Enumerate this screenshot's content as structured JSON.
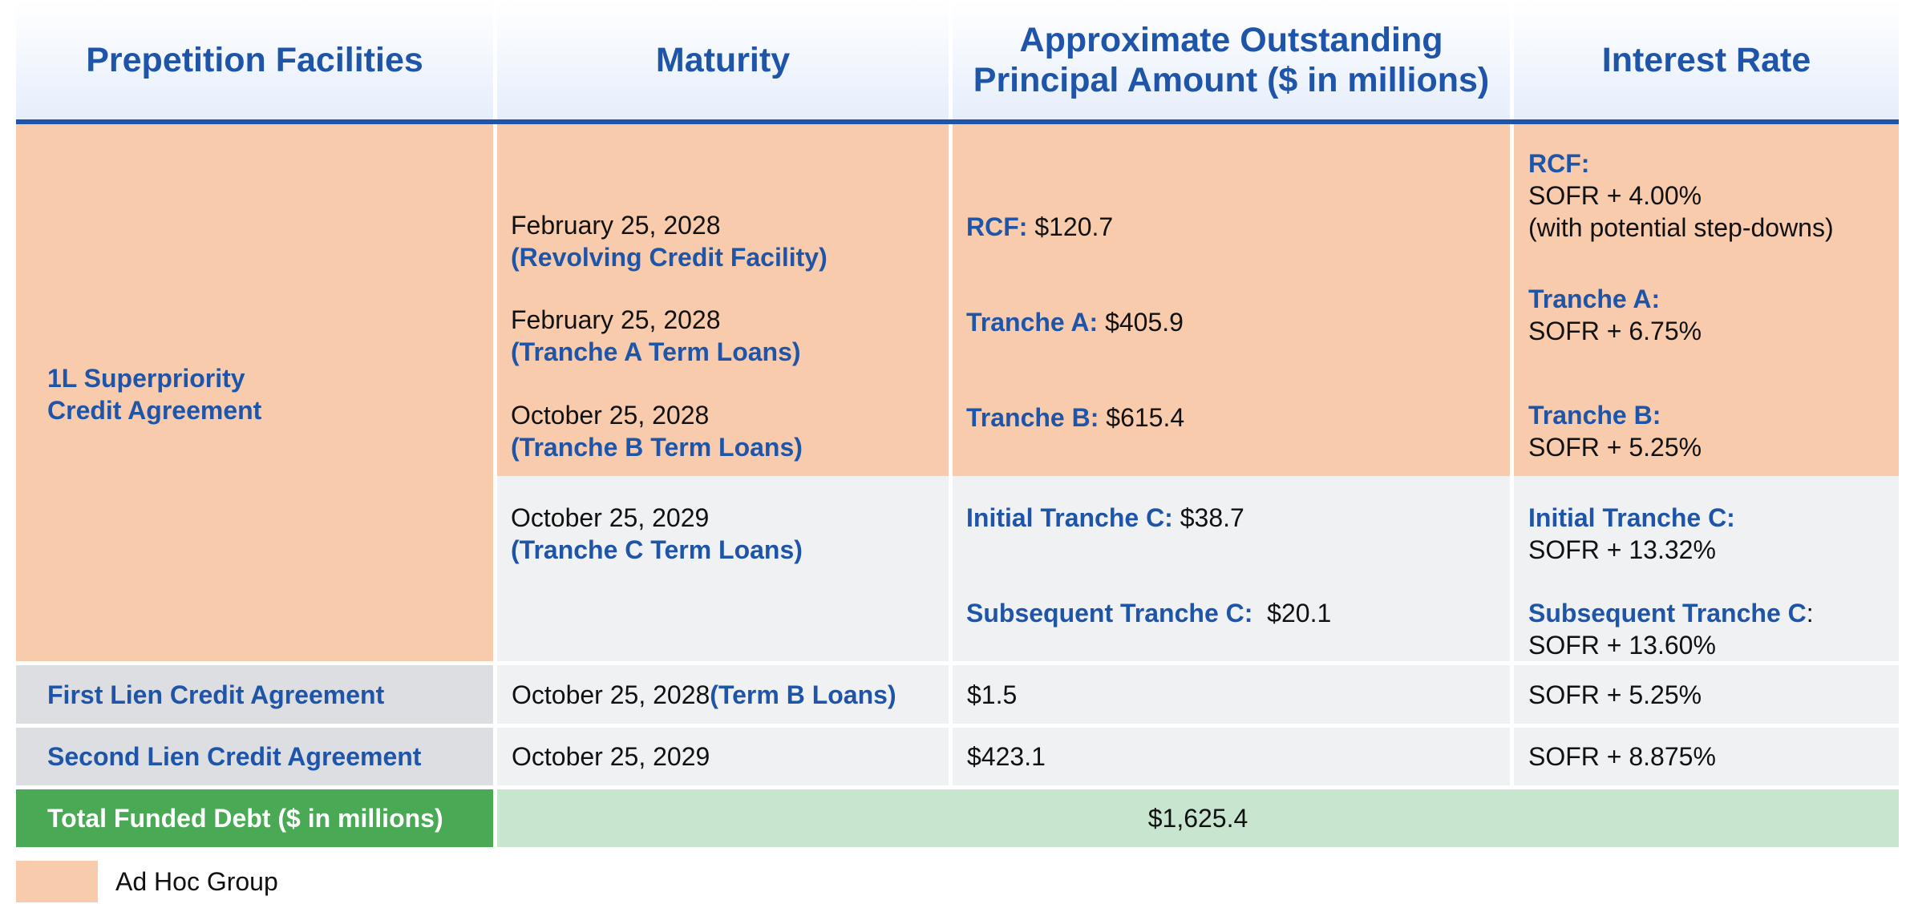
{
  "header": {
    "col1": "Prepetition Facilities",
    "col2": "Maturity",
    "col3_line1": "Approximate Outstanding",
    "col3_line2": "Principal Amount ($ in millions)",
    "col4": "Interest Rate"
  },
  "row_1l": {
    "facility_line1": "1L Superpriority",
    "facility_line2": "Credit Agreement",
    "maturities": [
      {
        "date": "February 25, 2028",
        "label": "(Revolving Credit Facility)"
      },
      {
        "date": "February 25, 2028",
        "label": "(Tranche A Term Loans)"
      },
      {
        "date": "October 25, 2028",
        "label": "(Tranche B Term Loans)"
      },
      {
        "date": "October 25, 2029",
        "label": "(Tranche C Term Loans)"
      }
    ],
    "amounts": [
      {
        "label": "RCF:",
        "value": "$120.7"
      },
      {
        "label": "Tranche A:",
        "value": "$405.9"
      },
      {
        "label": "Tranche B:",
        "value": "$615.4"
      },
      {
        "label": "Initial Tranche C:",
        "value": "$38.7"
      },
      {
        "label": "Subsequent Tranche C:",
        "value": "$20.1"
      }
    ],
    "rates": [
      {
        "label": "RCF:",
        "line1": "SOFR + 4.00%",
        "line2": "(with potential step-downs)"
      },
      {
        "label": "Tranche A:",
        "line1": "SOFR + 6.75%"
      },
      {
        "label": "Tranche B:",
        "line1": "SOFR + 5.25%"
      },
      {
        "label": "Initial Tranche C:",
        "line1": "SOFR + 13.32%"
      },
      {
        "label": "Subsequent Tranche C",
        "colon": ":",
        "line1": "SOFR + 13.60%"
      }
    ]
  },
  "row_first_lien": {
    "facility": "First Lien Credit Agreement",
    "maturity_date": "October 25, 2028",
    "maturity_label": "(Term B Loans)",
    "amount": "$1.5",
    "rate": "SOFR + 5.25%"
  },
  "row_second_lien": {
    "facility": "Second Lien Credit Agreement",
    "maturity_date": "October 25, 2029",
    "amount": "$423.1",
    "rate": "SOFR + 8.875%"
  },
  "total": {
    "label": "Total Funded Debt ($ in millions)",
    "value": "$1,625.4"
  },
  "legend": {
    "label": "Ad Hoc Group",
    "color": "#f8cbad"
  },
  "colors": {
    "header_text": "#1e55a8",
    "ad_hoc": "#f8cbad",
    "light_gray": "#f0f1f3",
    "mid_gray": "#dcdee2",
    "total_dark": "#4aa955",
    "total_light": "#c8e5cf"
  }
}
